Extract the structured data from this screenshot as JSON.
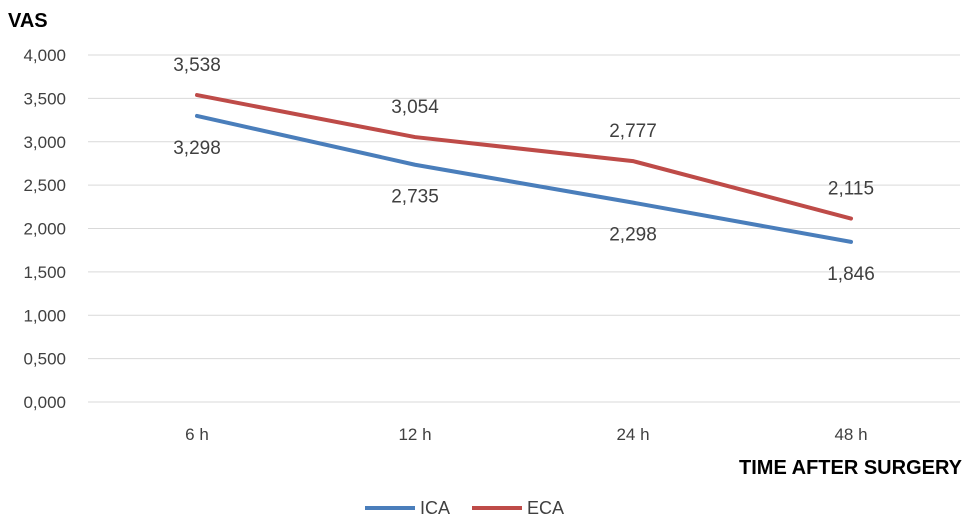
{
  "chart_data": {
    "type": "line",
    "ylabel": "VAS",
    "xlabel": "TIME AFTER SURGERY",
    "categories": [
      "6 h",
      "12 h",
      "24 h",
      "48 h"
    ],
    "y_ticks": [
      "0,000",
      "0,500",
      "1,000",
      "1,500",
      "2,000",
      "2,500",
      "3,000",
      "3,500",
      "4,000"
    ],
    "ylim": [
      0,
      4
    ],
    "grid": true,
    "legend_position": "bottom",
    "series": [
      {
        "name": "ICA",
        "color": "#4a7ebb",
        "values": [
          3.298,
          2.735,
          2.298,
          1.846
        ],
        "labels": [
          "3,298",
          "2,735",
          "2,298",
          "1,846"
        ]
      },
      {
        "name": "ECA",
        "color": "#be4b48",
        "values": [
          3.538,
          3.054,
          2.777,
          2.115
        ],
        "labels": [
          "3,538",
          "3,054",
          "2,777",
          "2,115"
        ]
      }
    ]
  }
}
